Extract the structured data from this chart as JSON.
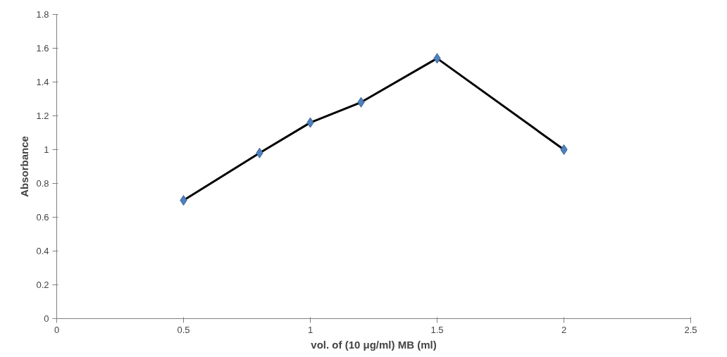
{
  "chart_data": {
    "type": "line",
    "xlabel": "vol. of (10 μg/ml) MB (ml)",
    "ylabel": "Absorbance",
    "x": [
      0.5,
      0.8,
      1.0,
      1.2,
      1.5,
      2.0
    ],
    "series": [
      {
        "color": "#000000",
        "values": [
          0.7,
          0.98,
          1.16,
          1.28,
          1.54,
          1.0
        ]
      }
    ],
    "xlim": [
      0,
      2.5
    ],
    "xticks": [
      0,
      0.5,
      1,
      1.5,
      2,
      2.5
    ],
    "ylim": [
      0,
      1.8
    ],
    "yticks": [
      0,
      0.2,
      0.4,
      0.6,
      0.8,
      1,
      1.2,
      1.4,
      1.6,
      1.8
    ],
    "grid": false,
    "marker": "diamond",
    "line_style": "solid"
  }
}
